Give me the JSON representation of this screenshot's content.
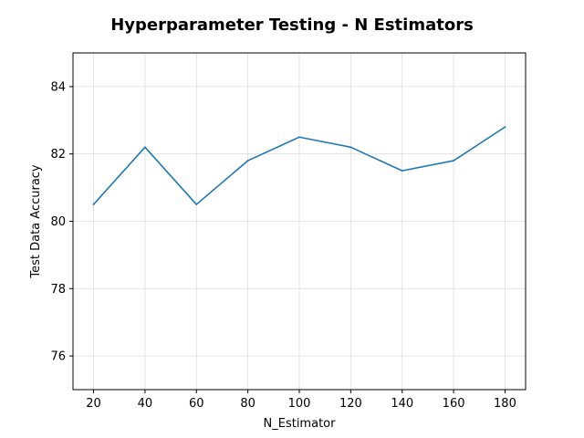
{
  "chart_data": {
    "type": "line",
    "title": "Hyperparameter Testing - N Estimators",
    "xlabel": "N_Estimator",
    "ylabel": "Test Data Accuracy",
    "x": [
      20,
      40,
      60,
      80,
      100,
      120,
      140,
      160,
      180
    ],
    "series": [
      {
        "values": [
          80.5,
          82.2,
          80.5,
          81.8,
          82.5,
          82.2,
          81.5,
          81.8,
          82.8
        ],
        "color": "#1f77b4"
      }
    ],
    "xticks": [
      20,
      40,
      60,
      80,
      100,
      120,
      140,
      160,
      180
    ],
    "yticks": [
      76,
      78,
      80,
      82,
      84
    ],
    "xlim": [
      12,
      188
    ],
    "ylim": [
      75,
      85
    ],
    "grid": true,
    "legend": "none"
  }
}
